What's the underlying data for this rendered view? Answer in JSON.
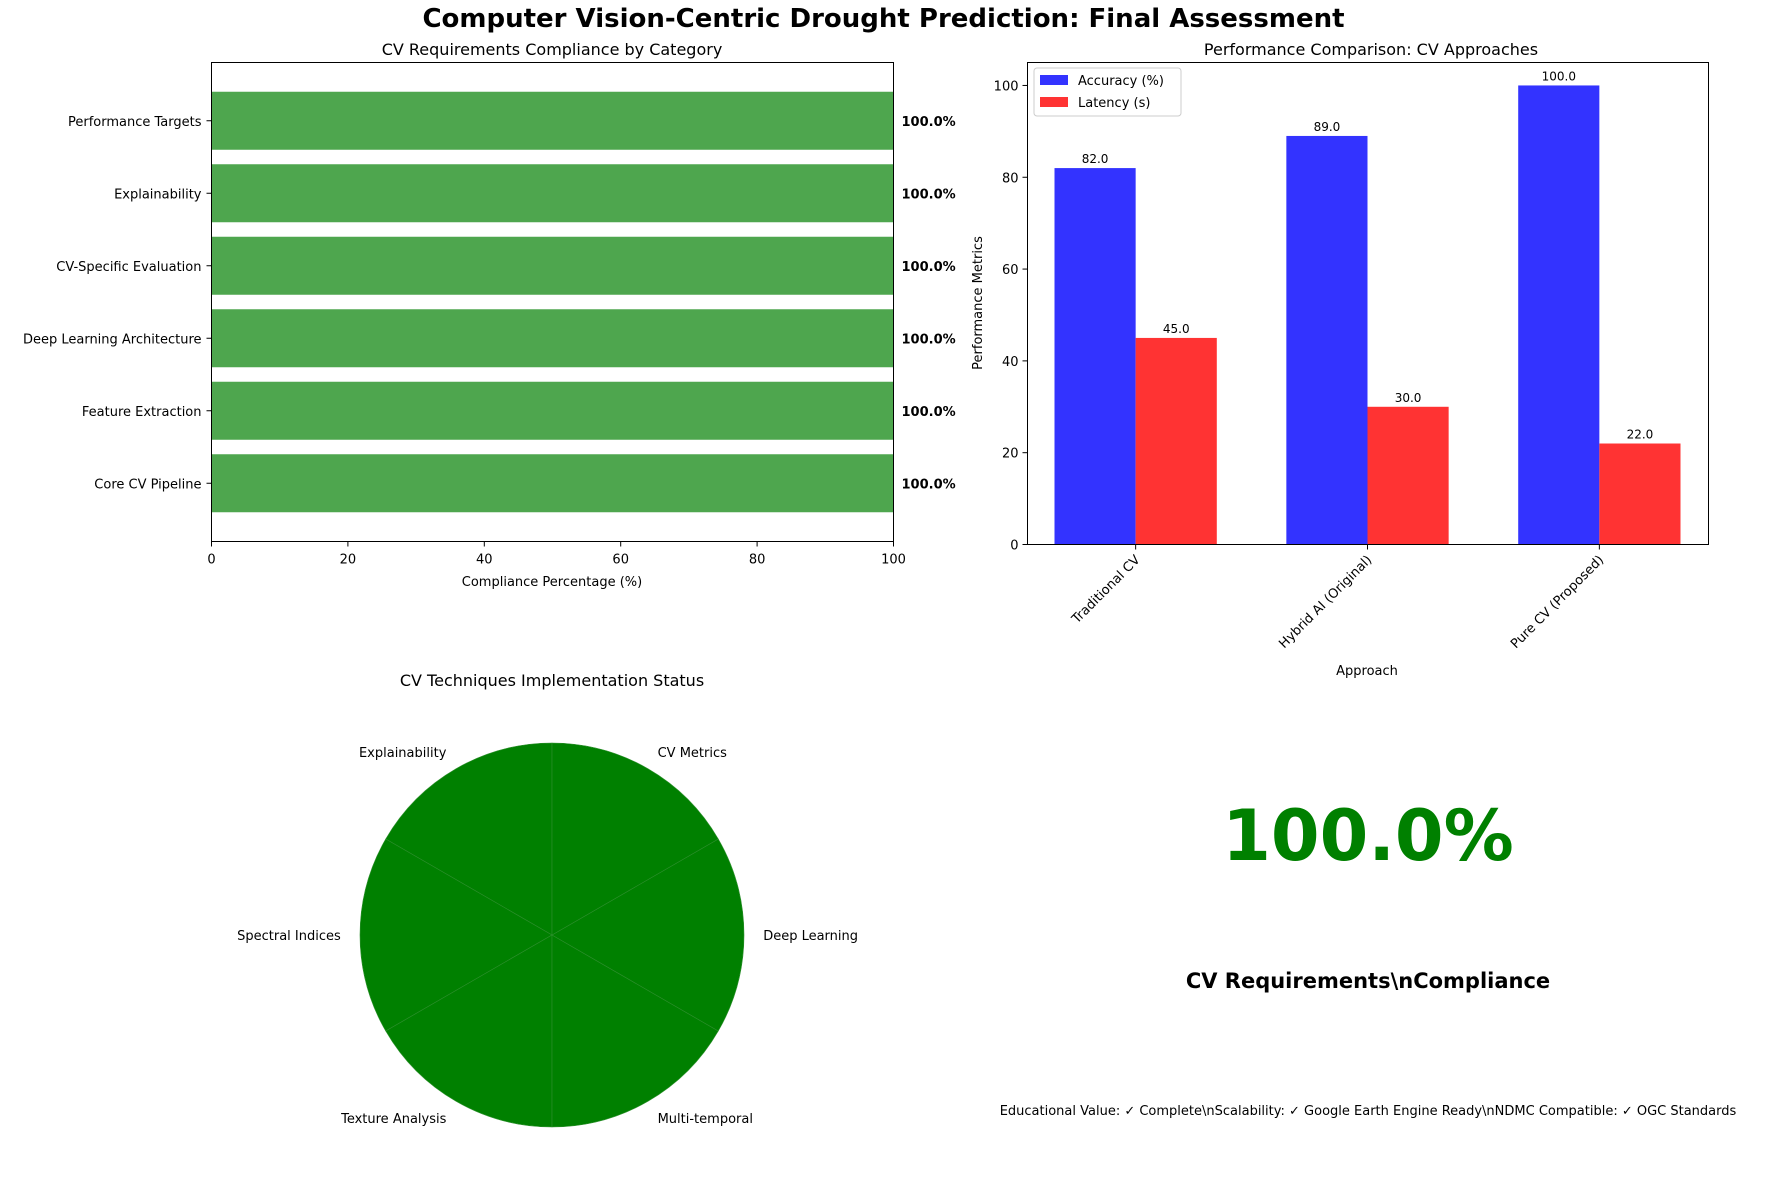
{
  "figure": {
    "title": "Computer Vision-Centric Drought Prediction: Final Assessment"
  },
  "chart_data": [
    {
      "type": "bar",
      "orientation": "horizontal",
      "title": "CV Requirements Compliance by Category",
      "xlabel": "Compliance Percentage (%)",
      "ylabel": "",
      "xlim": [
        0,
        100
      ],
      "xticks": [
        0,
        20,
        40,
        60,
        80,
        100
      ],
      "categories": [
        "Core CV Pipeline",
        "Feature Extraction",
        "Deep Learning Architecture",
        "CV-Specific Evaluation",
        "Explainability",
        "Performance Targets"
      ],
      "values": [
        100.0,
        100.0,
        100.0,
        100.0,
        100.0,
        100.0
      ],
      "value_labels": [
        "100.0%",
        "100.0%",
        "100.0%",
        "100.0%",
        "100.0%",
        "100.0%"
      ],
      "color": "#4ea64e",
      "grid": false
    },
    {
      "type": "bar",
      "title": "Performance Comparison: CV Approaches",
      "xlabel": "Approach",
      "ylabel": "Performance Metrics",
      "ylim": [
        0,
        105
      ],
      "yticks": [
        0,
        20,
        40,
        60,
        80,
        100
      ],
      "categories": [
        "Traditional CV",
        "Hybrid AI (Original)",
        "Pure CV (Proposed)"
      ],
      "series": [
        {
          "name": "Accuracy (%)",
          "values": [
            82.0,
            89.0,
            100.0
          ],
          "labels": [
            "82.0",
            "89.0",
            "100.0"
          ],
          "color": "#3333ff"
        },
        {
          "name": "Latency (s)",
          "values": [
            45.0,
            30.0,
            22.0
          ],
          "labels": [
            "45.0",
            "30.0",
            "22.0"
          ],
          "color": "#ff3333"
        }
      ],
      "legend": "top-left",
      "grid": false
    },
    {
      "type": "pie",
      "title": "CV Techniques Implementation Status",
      "labels": [
        "Explainability",
        "Spectral Indices",
        "Texture Analysis",
        "Multi-temporal",
        "Deep Learning",
        "CV Metrics"
      ],
      "values": [
        1,
        1,
        1,
        1,
        1,
        1
      ],
      "color": "#008000"
    }
  ],
  "summary": {
    "big_value": "100.0%",
    "label": "CV Requirements\\nCompliance",
    "details": "Educational Value: ✓ Complete\\nScalability: ✓ Google Earth Engine Ready\\nNDMC Compatible: ✓ OGC Standards",
    "color": "#008000"
  }
}
